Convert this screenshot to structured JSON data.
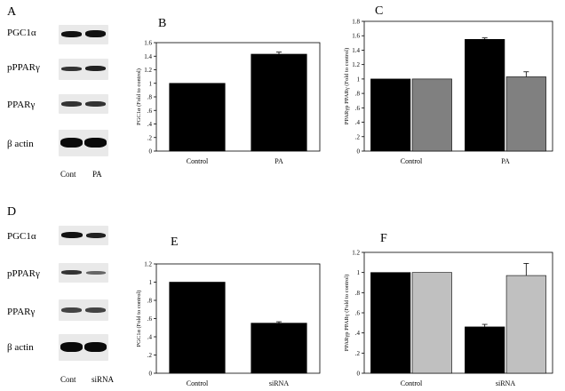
{
  "panels": {
    "A": {
      "letter": "A",
      "blot_labels": [
        "PGC1α",
        "pPPARγ",
        "PPARγ",
        "β actin"
      ],
      "lane_labels": [
        "Cont",
        "PA"
      ]
    },
    "D": {
      "letter": "D",
      "blot_labels": [
        "PGC1α",
        "pPPARγ",
        "PPARγ",
        "β actin"
      ],
      "lane_labels": [
        "Cont",
        "siRNA"
      ]
    }
  },
  "chart_data": [
    {
      "id": "B",
      "panel_letter": "B",
      "type": "bar",
      "categories": [
        "Control",
        "PA"
      ],
      "series": [
        {
          "values": [
            1.0,
            1.43
          ],
          "errors": [
            0.0,
            0.03
          ]
        }
      ],
      "ylabel": "PGC1α (Fold to control)",
      "ylim": [
        0,
        1.6
      ],
      "yticks": [
        0,
        0.2,
        0.4,
        0.6,
        0.8,
        1,
        1.2,
        1.4,
        1.6
      ],
      "ytick_labels": [
        "0",
        ".2",
        ".4",
        ".6",
        ".8",
        "1",
        "1.2",
        "1.4",
        "1.6"
      ],
      "colors": [
        "#000000"
      ]
    },
    {
      "id": "C",
      "panel_letter": "C",
      "type": "bar",
      "categories": [
        "Control",
        "PA"
      ],
      "series": [
        {
          "values": [
            1.0,
            1.55
          ],
          "errors": [
            0.0,
            0.02
          ]
        },
        {
          "values": [
            1.0,
            1.03
          ],
          "errors": [
            0.0,
            0.07
          ]
        }
      ],
      "ylabel": "PPARγp PPARγ (Fold to control)",
      "ylim": [
        0,
        1.8
      ],
      "yticks": [
        0,
        0.2,
        0.4,
        0.6,
        0.8,
        1,
        1.2,
        1.4,
        1.6,
        1.8
      ],
      "ytick_labels": [
        "0",
        ".2",
        ".4",
        ".6",
        ".8",
        "1",
        "1.2",
        "1.4",
        "1.6",
        "1.8"
      ],
      "colors": [
        "#000000",
        "#808080"
      ]
    },
    {
      "id": "E",
      "panel_letter": "E",
      "type": "bar",
      "categories": [
        "Control",
        "siRNA"
      ],
      "series": [
        {
          "values": [
            1.0,
            0.55
          ],
          "errors": [
            0.0,
            0.015
          ]
        }
      ],
      "ylabel": "PGC1α (Fold to control)",
      "ylim": [
        0,
        1.2
      ],
      "yticks": [
        0,
        0.2,
        0.4,
        0.6,
        0.8,
        1,
        1.2
      ],
      "ytick_labels": [
        "0",
        ".2",
        ".4",
        ".6",
        ".8",
        "1",
        "1.2"
      ],
      "colors": [
        "#000000"
      ]
    },
    {
      "id": "F",
      "panel_letter": "F",
      "type": "bar",
      "categories": [
        "Control",
        "siRNA"
      ],
      "series": [
        {
          "values": [
            1.0,
            0.46
          ],
          "errors": [
            0.0,
            0.025
          ]
        },
        {
          "values": [
            1.0,
            0.97
          ],
          "errors": [
            0.0,
            0.12
          ]
        }
      ],
      "ylabel": "PPARγp PPARγ (Fold to control)",
      "ylim": [
        0,
        1.2
      ],
      "yticks": [
        0,
        0.2,
        0.4,
        0.6,
        0.8,
        1,
        1.2
      ],
      "ytick_labels": [
        "0",
        ".2",
        ".4",
        ".6",
        ".8",
        "1",
        "1.2"
      ],
      "colors": [
        "#000000",
        "#c0c0c0"
      ]
    }
  ]
}
